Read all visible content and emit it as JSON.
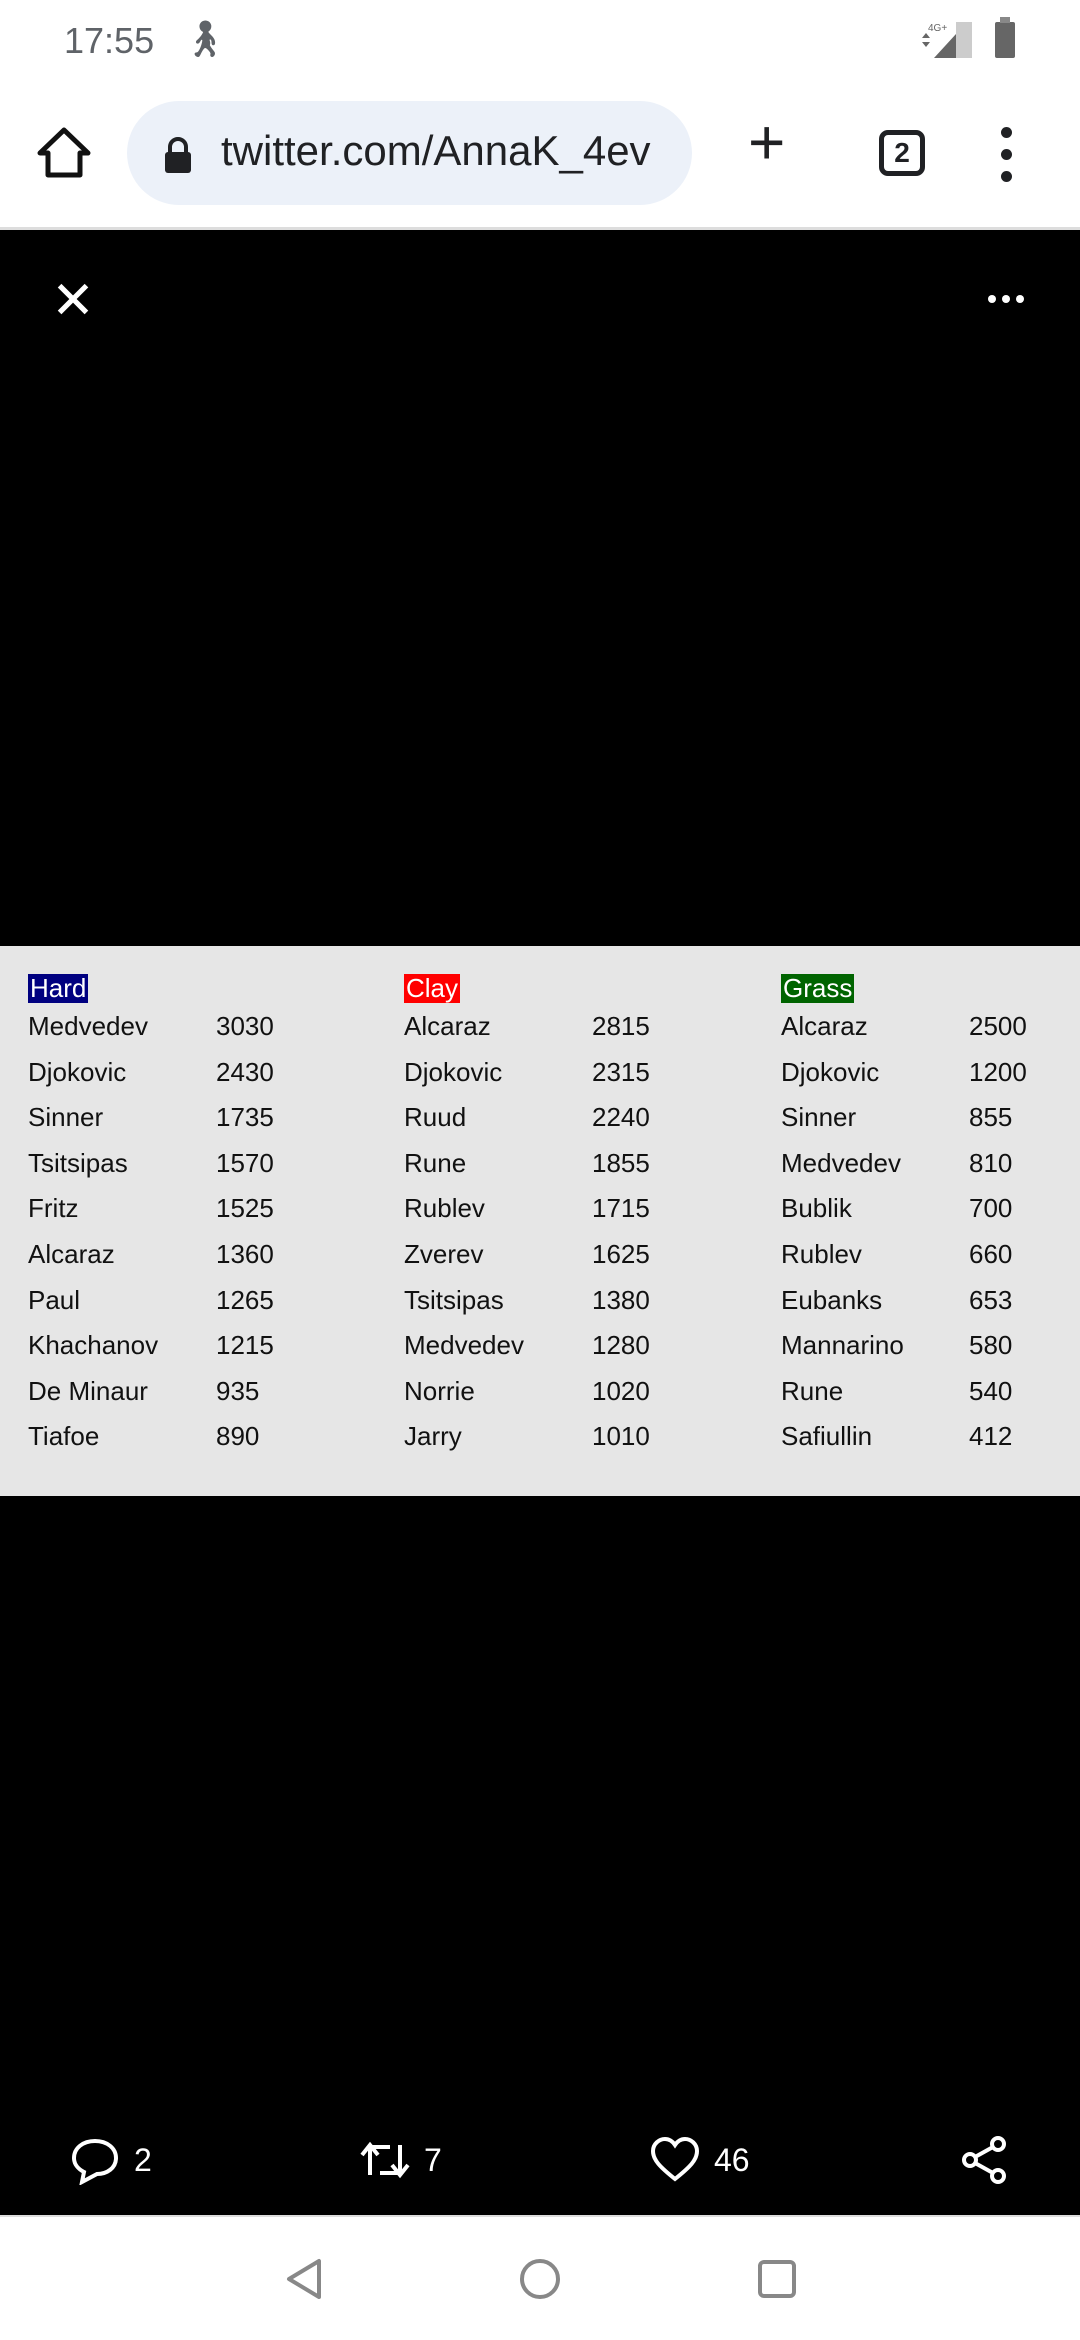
{
  "status_bar": {
    "time": "17:55",
    "network": "4G+"
  },
  "browser": {
    "url": "twitter.com/AnnaK_4ev",
    "tab_count": "2"
  },
  "image_table": {
    "columns": [
      {
        "header": "Hard",
        "color": "#000080",
        "rows": [
          [
            "Medvedev",
            "3030"
          ],
          [
            "Djokovic",
            "2430"
          ],
          [
            "Sinner",
            "1735"
          ],
          [
            "Tsitsipas",
            "1570"
          ],
          [
            "Fritz",
            "1525"
          ],
          [
            "Alcaraz",
            "1360"
          ],
          [
            "Paul",
            "1265"
          ],
          [
            "Khachanov",
            "1215"
          ],
          [
            "De Minaur",
            "935"
          ],
          [
            "Tiafoe",
            "890"
          ]
        ]
      },
      {
        "header": "Clay",
        "color": "#ff0000",
        "rows": [
          [
            "Alcaraz",
            "2815"
          ],
          [
            "Djokovic",
            "2315"
          ],
          [
            "Ruud",
            "2240"
          ],
          [
            "Rune",
            "1855"
          ],
          [
            "Rublev",
            "1715"
          ],
          [
            "Zverev",
            "1625"
          ],
          [
            "Tsitsipas",
            "1380"
          ],
          [
            "Medvedev",
            "1280"
          ],
          [
            "Norrie",
            "1020"
          ],
          [
            "Jarry",
            "1010"
          ]
        ]
      },
      {
        "header": "Grass",
        "color": "#006400",
        "rows": [
          [
            "Alcaraz",
            "2500"
          ],
          [
            "Djokovic",
            "1200"
          ],
          [
            "Sinner",
            "855"
          ],
          [
            "Medvedev",
            "810"
          ],
          [
            "Bublik",
            "700"
          ],
          [
            "Rublev",
            "660"
          ],
          [
            "Eubanks",
            "653"
          ],
          [
            "Mannarino",
            "580"
          ],
          [
            "Rune",
            "540"
          ],
          [
            "Safiullin",
            "412"
          ]
        ]
      }
    ]
  },
  "actions": {
    "replies": "2",
    "retweets": "7",
    "likes": "46"
  }
}
